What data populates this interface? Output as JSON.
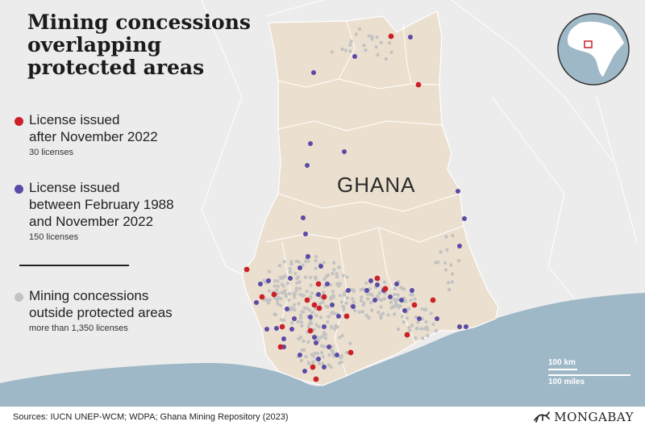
{
  "title": "Mining concessions overlapping protected areas",
  "country": "GHANA",
  "legend": [
    {
      "label": "License issued\nafter November 2022",
      "sub": "30 licenses",
      "color": "#cc2028"
    },
    {
      "label": "License issued\nbetween February 1988\nand November 2022",
      "sub": "150 licenses",
      "color": "#5b4aa6"
    },
    {
      "label": "Mining concessions\noutside protected areas",
      "sub": "more than 1,350 licenses",
      "color": "#c3c3c3"
    }
  ],
  "scale": {
    "km": "100 km",
    "miles": "100 miles"
  },
  "source": "Sources: IUCN UNEP-WCM; WDPA; Ghana Mining Repository (2023)",
  "brand": "MONGABAY",
  "colors": {
    "land": "#ebe0cf",
    "ocean": "#9eb8c7",
    "background": "#ececec",
    "red": "#cc2028",
    "purple": "#5b4aa6",
    "grey": "#c3c3c3"
  }
}
